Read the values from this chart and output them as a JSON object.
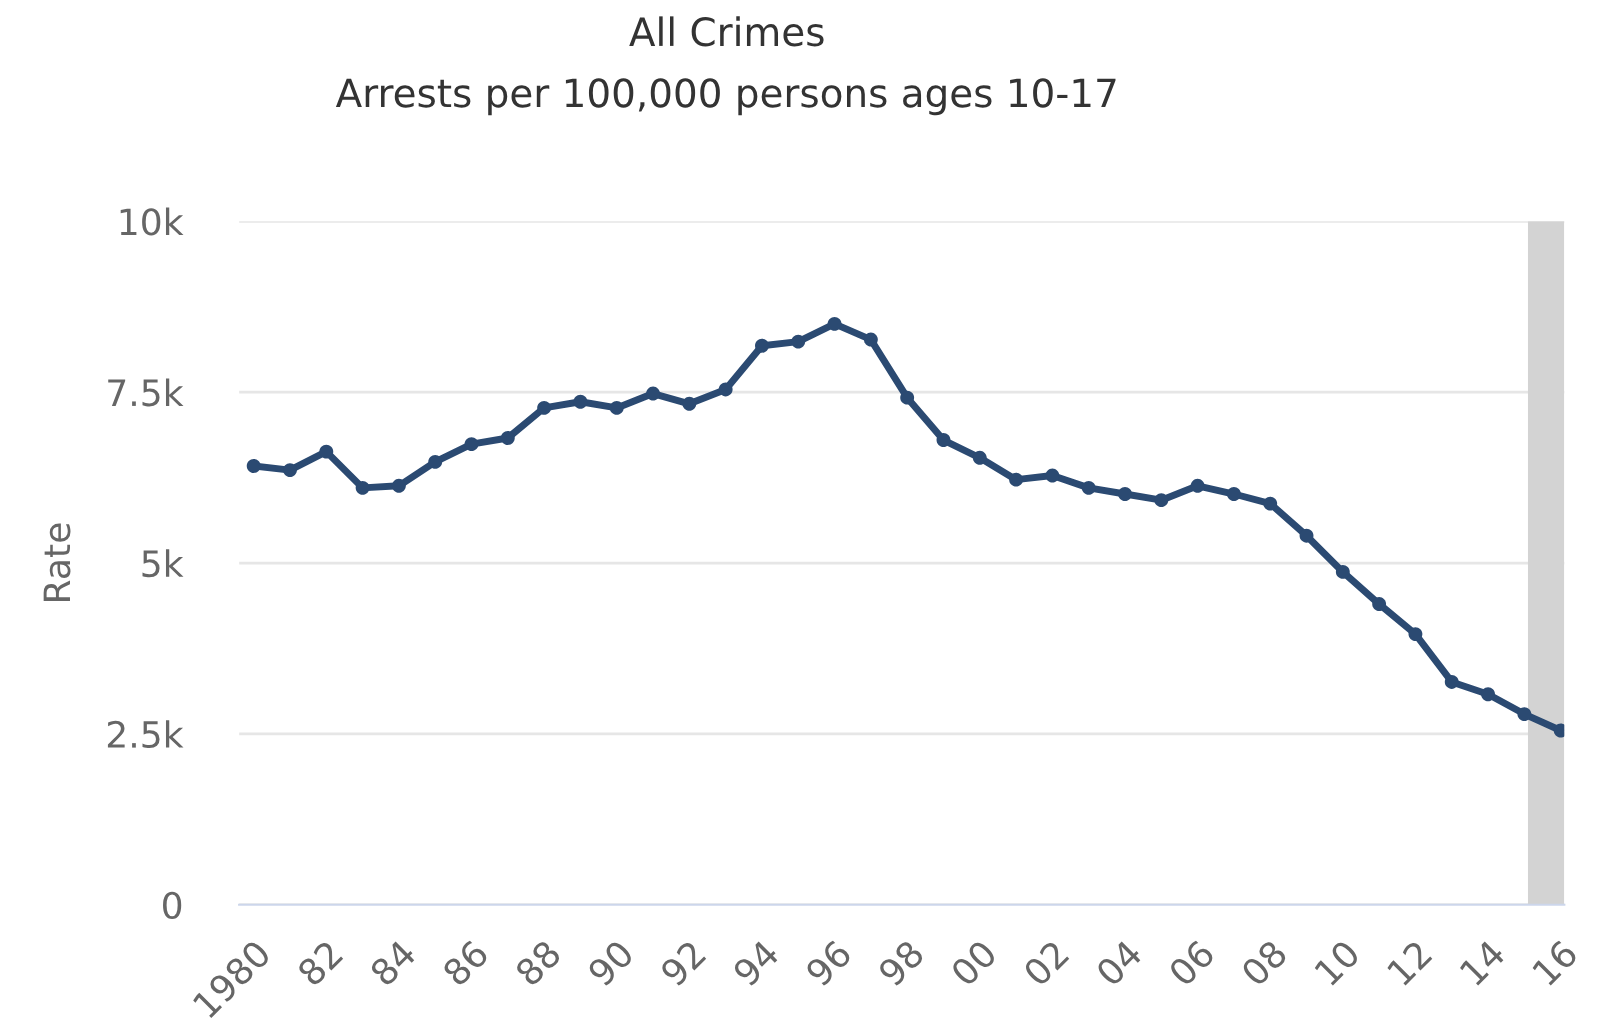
{
  "chart_data": {
    "type": "line",
    "title": "All Crimes",
    "subtitle": "Arrests per 100,000 persons ages 10-17",
    "ylabel": "Rate",
    "x": [
      1980,
      1981,
      1982,
      1983,
      1984,
      1985,
      1986,
      1987,
      1988,
      1989,
      1990,
      1991,
      1992,
      1993,
      1994,
      1995,
      1996,
      1997,
      1998,
      1999,
      2000,
      2001,
      2002,
      2003,
      2004,
      2005,
      2006,
      2007,
      2008,
      2009,
      2010,
      2011,
      2012,
      2013,
      2014,
      2015,
      2016
    ],
    "series": [
      {
        "color": "#2b4a72",
        "values": [
          6420,
          6360,
          6630,
          6100,
          6130,
          6480,
          6740,
          6830,
          7270,
          7360,
          7270,
          7480,
          7330,
          7540,
          8180,
          8240,
          8500,
          8270,
          7420,
          6800,
          6540,
          6220,
          6280,
          6100,
          6010,
          5920,
          6130,
          6010,
          5870,
          5400,
          4870,
          4400,
          3960,
          3260,
          3080,
          2790,
          2550
        ]
      }
    ],
    "xlim": [
      1979.6,
      2016.1
    ],
    "ylim": [
      0,
      10000
    ],
    "xticks": [
      {
        "value": 1980,
        "label": "1980"
      },
      {
        "value": 1982,
        "label": "82"
      },
      {
        "value": 1984,
        "label": "84"
      },
      {
        "value": 1986,
        "label": "86"
      },
      {
        "value": 1988,
        "label": "88"
      },
      {
        "value": 1990,
        "label": "90"
      },
      {
        "value": 1992,
        "label": "92"
      },
      {
        "value": 1994,
        "label": "94"
      },
      {
        "value": 1996,
        "label": "96"
      },
      {
        "value": 1998,
        "label": "98"
      },
      {
        "value": 2000,
        "label": "00"
      },
      {
        "value": 2002,
        "label": "02"
      },
      {
        "value": 2004,
        "label": "04"
      },
      {
        "value": 2006,
        "label": "06"
      },
      {
        "value": 2008,
        "label": "08"
      },
      {
        "value": 2010,
        "label": "10"
      },
      {
        "value": 2012,
        "label": "12"
      },
      {
        "value": 2014,
        "label": "14"
      },
      {
        "value": 2016,
        "label": "16"
      }
    ],
    "yticks": [
      0,
      {
        "value": 2500,
        "label": "2.5k"
      },
      {
        "value": 5000,
        "label": "5k"
      },
      {
        "value": 7500,
        "label": "7.5k"
      },
      {
        "value": 10000,
        "label": "10k"
      }
    ],
    "bands": [
      {
        "axis": "x",
        "from": 2015.1,
        "to": 2016.1,
        "color": "#d3d3d3"
      }
    ],
    "grid": "y",
    "marker": "circle",
    "line_style": "solid"
  }
}
